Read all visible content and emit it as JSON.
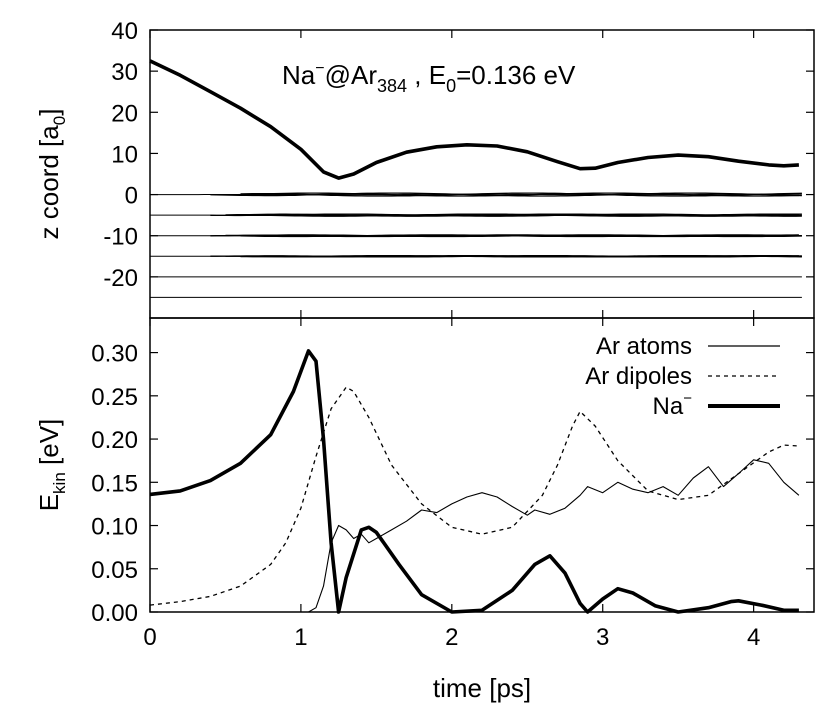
{
  "chart_data": [
    {
      "type": "line",
      "panel": "top",
      "ylabel": "z coord [a",
      "ylabel_sub": "0",
      "ylabel_end": "]",
      "ylim": [
        -30,
        40
      ],
      "xlim": [
        0,
        4.4
      ],
      "yticks": [
        -20,
        -10,
        0,
        10,
        20,
        30,
        40
      ],
      "ytick_labels": [
        "-20",
        "-10",
        "0",
        "10",
        "20",
        "30",
        "40"
      ],
      "annotation": {
        "na": "Na",
        "sup": "−",
        "at": "@Ar",
        "sub": "384",
        "energy_sep": " , E",
        "energy_sub": "0",
        "energy_value": "=0.136 eV"
      },
      "series": [
        {
          "name": "Na⁻ z",
          "style": "thick",
          "points": [
            [
              0,
              32.5
            ],
            [
              0.2,
              29
            ],
            [
              0.4,
              25
            ],
            [
              0.6,
              21
            ],
            [
              0.8,
              16.5
            ],
            [
              1.0,
              11
            ],
            [
              1.15,
              5.5
            ],
            [
              1.25,
              4.0
            ],
            [
              1.35,
              5.0
            ],
            [
              1.5,
              7.8
            ],
            [
              1.7,
              10.3
            ],
            [
              1.9,
              11.6
            ],
            [
              2.1,
              12.1
            ],
            [
              2.3,
              11.8
            ],
            [
              2.5,
              10.4
            ],
            [
              2.7,
              8.0
            ],
            [
              2.85,
              6.3
            ],
            [
              2.95,
              6.4
            ],
            [
              3.1,
              7.8
            ],
            [
              3.3,
              9.0
            ],
            [
              3.5,
              9.6
            ],
            [
              3.7,
              9.2
            ],
            [
              3.9,
              8.1
            ],
            [
              4.1,
              7.2
            ],
            [
              4.2,
              7.0
            ],
            [
              4.3,
              7.2
            ]
          ]
        },
        {
          "name": "Ar layer 0",
          "style": "layer",
          "base": 0,
          "wobble": 0.35
        },
        {
          "name": "Ar layer -5",
          "style": "layer",
          "base": -5,
          "wobble": 0.25
        },
        {
          "name": "Ar layer -10",
          "style": "layer",
          "base": -10,
          "wobble": 0.2
        },
        {
          "name": "Ar layer -15",
          "style": "layer",
          "base": -15,
          "wobble": 0.15
        },
        {
          "name": "Ar layer -20",
          "style": "flat",
          "base": -20
        },
        {
          "name": "Ar layer -25",
          "style": "flat",
          "base": -25
        }
      ]
    },
    {
      "type": "line",
      "panel": "bottom",
      "xlabel": "time [ps]",
      "ylabel": "E",
      "ylabel_sub": "kin",
      "ylabel_end": " [eV]",
      "xlim": [
        0,
        4.4
      ],
      "ylim": [
        0,
        0.34
      ],
      "xticks": [
        0,
        1,
        2,
        3,
        4
      ],
      "xtick_labels": [
        "0",
        "1",
        "2",
        "3",
        "4"
      ],
      "yticks": [
        0,
        0.05,
        0.1,
        0.15,
        0.2,
        0.25,
        0.3
      ],
      "ytick_labels": [
        "0.00",
        "0.05",
        "0.10",
        "0.15",
        "0.20",
        "0.25",
        "0.30"
      ],
      "legend_position": "top-right",
      "series": [
        {
          "name": "Ar atoms",
          "style": "thin",
          "points": [
            [
              1.05,
              0.0
            ],
            [
              1.1,
              0.005
            ],
            [
              1.15,
              0.03
            ],
            [
              1.2,
              0.08
            ],
            [
              1.25,
              0.1
            ],
            [
              1.3,
              0.095
            ],
            [
              1.35,
              0.085
            ],
            [
              1.4,
              0.09
            ],
            [
              1.45,
              0.08
            ],
            [
              1.5,
              0.085
            ],
            [
              1.6,
              0.095
            ],
            [
              1.7,
              0.105
            ],
            [
              1.8,
              0.118
            ],
            [
              1.9,
              0.115
            ],
            [
              2.0,
              0.125
            ],
            [
              2.1,
              0.133
            ],
            [
              2.2,
              0.138
            ],
            [
              2.3,
              0.133
            ],
            [
              2.4,
              0.122
            ],
            [
              2.5,
              0.112
            ],
            [
              2.55,
              0.118
            ],
            [
              2.65,
              0.113
            ],
            [
              2.75,
              0.12
            ],
            [
              2.85,
              0.135
            ],
            [
              2.9,
              0.145
            ],
            [
              3.0,
              0.138
            ],
            [
              3.1,
              0.15
            ],
            [
              3.2,
              0.142
            ],
            [
              3.3,
              0.138
            ],
            [
              3.4,
              0.145
            ],
            [
              3.5,
              0.135
            ],
            [
              3.6,
              0.155
            ],
            [
              3.7,
              0.168
            ],
            [
              3.8,
              0.145
            ],
            [
              3.9,
              0.16
            ],
            [
              4.0,
              0.176
            ],
            [
              4.1,
              0.172
            ],
            [
              4.2,
              0.15
            ],
            [
              4.3,
              0.135
            ]
          ]
        },
        {
          "name": "Ar dipoles",
          "style": "dashed",
          "points": [
            [
              0,
              0.008
            ],
            [
              0.2,
              0.012
            ],
            [
              0.4,
              0.018
            ],
            [
              0.6,
              0.03
            ],
            [
              0.8,
              0.055
            ],
            [
              0.9,
              0.08
            ],
            [
              1.0,
              0.12
            ],
            [
              1.1,
              0.18
            ],
            [
              1.2,
              0.235
            ],
            [
              1.3,
              0.26
            ],
            [
              1.35,
              0.255
            ],
            [
              1.45,
              0.225
            ],
            [
              1.6,
              0.17
            ],
            [
              1.8,
              0.125
            ],
            [
              2.0,
              0.098
            ],
            [
              2.2,
              0.09
            ],
            [
              2.4,
              0.098
            ],
            [
              2.6,
              0.135
            ],
            [
              2.7,
              0.17
            ],
            [
              2.8,
              0.215
            ],
            [
              2.85,
              0.232
            ],
            [
              2.95,
              0.215
            ],
            [
              3.1,
              0.175
            ],
            [
              3.3,
              0.14
            ],
            [
              3.5,
              0.13
            ],
            [
              3.7,
              0.135
            ],
            [
              3.9,
              0.16
            ],
            [
              4.1,
              0.185
            ],
            [
              4.2,
              0.193
            ],
            [
              4.3,
              0.192
            ]
          ]
        },
        {
          "name": "Na⁻",
          "style": "thick",
          "points": [
            [
              0,
              0.136
            ],
            [
              0.2,
              0.14
            ],
            [
              0.4,
              0.152
            ],
            [
              0.6,
              0.172
            ],
            [
              0.8,
              0.205
            ],
            [
              0.95,
              0.255
            ],
            [
              1.05,
              0.302
            ],
            [
              1.1,
              0.29
            ],
            [
              1.15,
              0.2
            ],
            [
              1.2,
              0.08
            ],
            [
              1.25,
              0.0
            ],
            [
              1.3,
              0.04
            ],
            [
              1.4,
              0.095
            ],
            [
              1.45,
              0.098
            ],
            [
              1.5,
              0.092
            ],
            [
              1.65,
              0.055
            ],
            [
              1.8,
              0.02
            ],
            [
              2.0,
              0.0
            ],
            [
              2.2,
              0.002
            ],
            [
              2.4,
              0.025
            ],
            [
              2.55,
              0.055
            ],
            [
              2.65,
              0.065
            ],
            [
              2.75,
              0.045
            ],
            [
              2.85,
              0.01
            ],
            [
              2.9,
              0.0
            ],
            [
              3.0,
              0.015
            ],
            [
              3.1,
              0.027
            ],
            [
              3.2,
              0.022
            ],
            [
              3.35,
              0.007
            ],
            [
              3.5,
              0.0
            ],
            [
              3.7,
              0.005
            ],
            [
              3.85,
              0.012
            ],
            [
              3.9,
              0.013
            ],
            [
              4.05,
              0.008
            ],
            [
              4.2,
              0.002
            ],
            [
              4.3,
              0.002
            ]
          ]
        }
      ]
    }
  ],
  "legend": [
    {
      "label": "Ar atoms",
      "style": "thin"
    },
    {
      "label": "Ar dipoles",
      "style": "dashed"
    },
    {
      "label": "Na",
      "sup": "−",
      "style": "thick"
    }
  ]
}
